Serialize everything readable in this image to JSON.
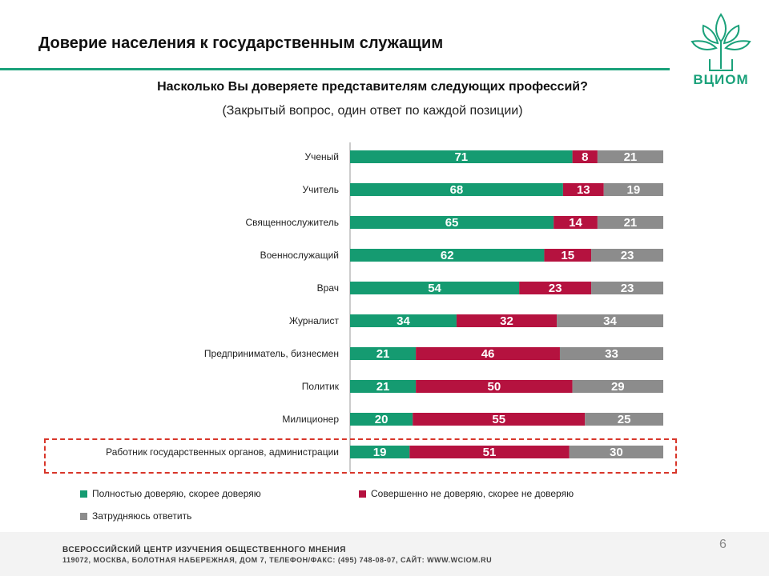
{
  "header": {
    "title": "Доверие населения к государственным служащим",
    "logo_text": "ВЦИОМ"
  },
  "colors": {
    "accent": "#1aa17a",
    "trust": "#159b71",
    "distrust": "#b5123f",
    "unsure": "#8c8c8c",
    "highlight": "#d8362a"
  },
  "chart_data": {
    "type": "bar",
    "orientation": "horizontal",
    "stacked": true,
    "title": "Насколько Вы доверяете представителям следующих профессий?",
    "subtitle": "(Закрытый вопрос, один ответ по каждой позиции)",
    "categories": [
      "Ученый",
      "Учитель",
      "Священнослужитель",
      "Военнослужащий",
      "Врач",
      "Журналист",
      "Предприниматель, бизнесмен",
      "Политик",
      "Милиционер",
      "Работник государственных органов, администрации"
    ],
    "series": [
      {
        "name": "Полностью доверяю, скорее доверяю",
        "color": "#159b71",
        "values": [
          71,
          68,
          65,
          62,
          54,
          34,
          21,
          21,
          20,
          19
        ]
      },
      {
        "name": "Совершенно не доверяю, скорее не доверяю",
        "color": "#b5123f",
        "values": [
          8,
          13,
          14,
          15,
          23,
          32,
          46,
          50,
          55,
          51
        ]
      },
      {
        "name": "Затрудняюсь ответить",
        "color": "#8c8c8c",
        "values": [
          21,
          19,
          21,
          23,
          23,
          34,
          33,
          29,
          25,
          30
        ]
      }
    ],
    "xlim": [
      0,
      100
    ],
    "highlighted_category": "Работник государственных органов, администрации",
    "legend_position": "bottom"
  },
  "footer": {
    "line1": "ВСЕРОССИЙСКИЙ ЦЕНТР ИЗУЧЕНИЯ ОБЩЕСТВЕННОГО МНЕНИЯ",
    "line2": "119072, МОСКВА, БОЛОТНАЯ НАБЕРЕЖНАЯ, ДОМ 7, ТЕЛЕФОН/ФАКС: (495) 748-08-07, САЙТ: WWW.WCIOM.RU",
    "page_number": "6"
  }
}
